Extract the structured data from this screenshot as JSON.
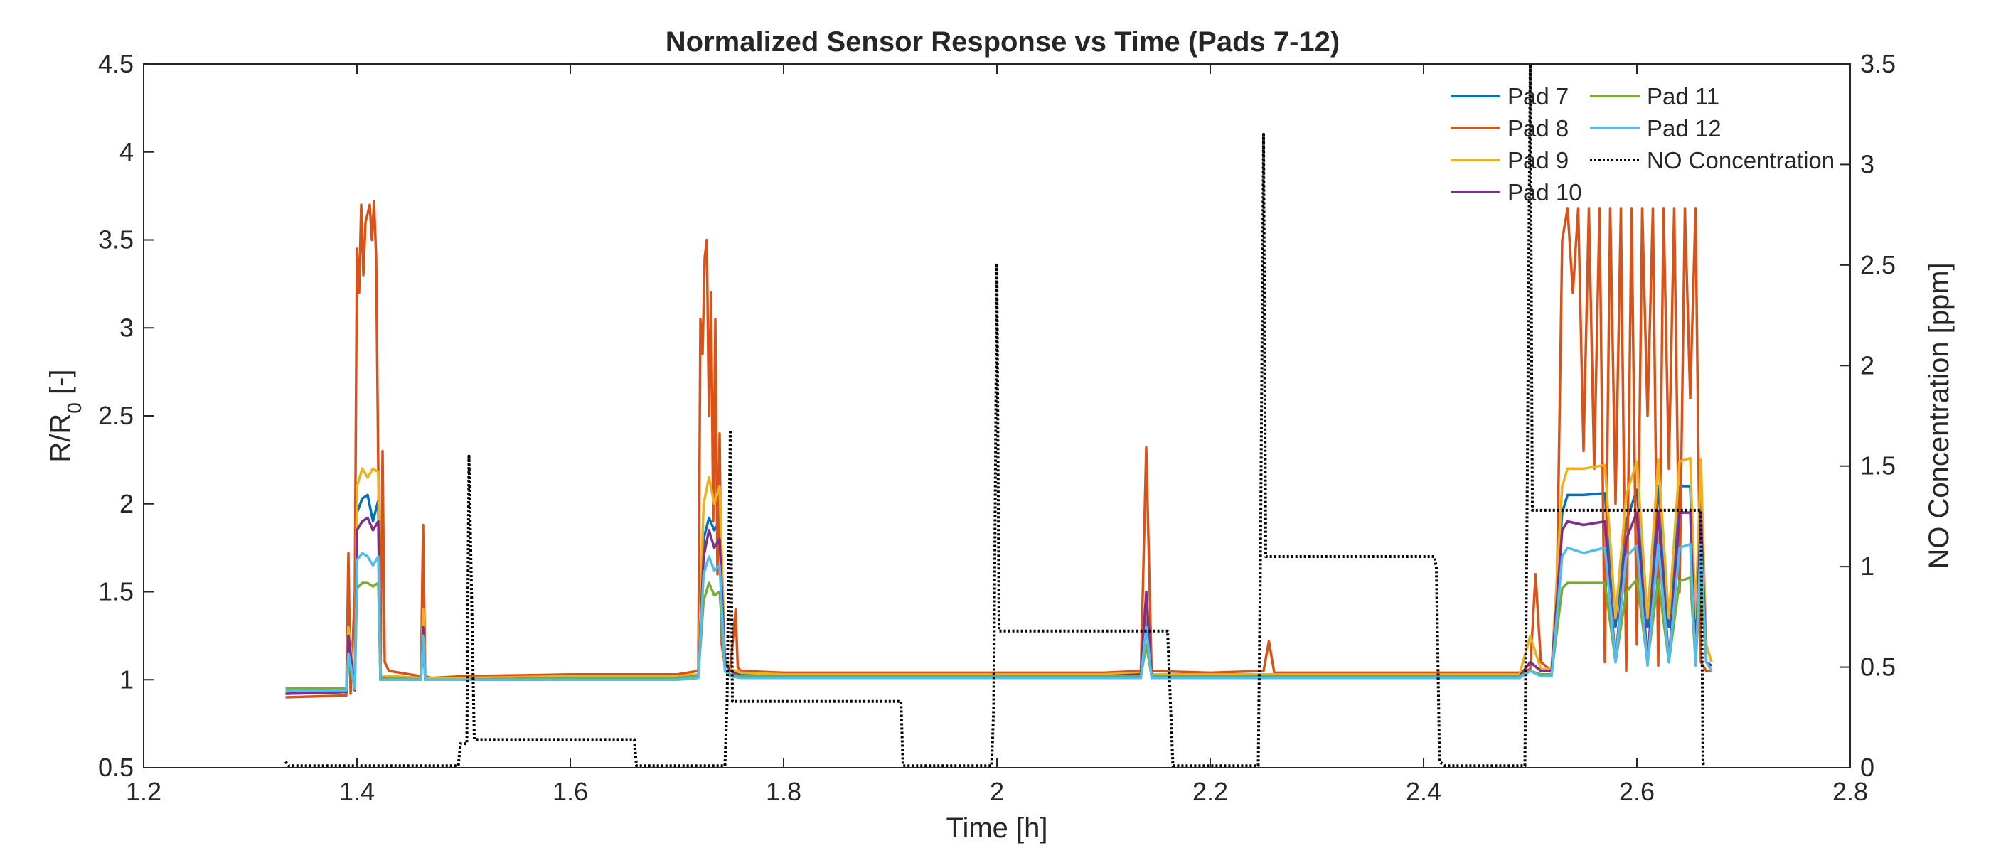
{
  "chart_data": {
    "type": "line",
    "title": "Normalized Sensor Response vs Time (Pads 7-12)",
    "xlabel": "Time [h]",
    "ylabel_left_main": "R/R",
    "ylabel_left_sub": "0",
    "ylabel_left_tail": " [-]",
    "ylabel_right": "NO Concentration [ppm]",
    "xlim": [
      1.2,
      2.8
    ],
    "ylim_left": [
      0.5,
      4.5
    ],
    "ylim_right": [
      0,
      3.5
    ],
    "x_ticks": [
      "1.2",
      "1.4",
      "1.6",
      "1.8",
      "2",
      "2.2",
      "2.4",
      "2.6",
      "2.8"
    ],
    "y_left_ticks": [
      "0.5",
      "1",
      "1.5",
      "2",
      "2.5",
      "3",
      "3.5",
      "4",
      "4.5"
    ],
    "y_right_ticks": [
      "0",
      "0.5",
      "1",
      "1.5",
      "2",
      "2.5",
      "3",
      "3.5"
    ],
    "grid": false,
    "legend_position": "top-right",
    "series": [
      {
        "name": "Pad 7",
        "color": "#0072BD",
        "axis": "left",
        "x": [
          1.333,
          1.39,
          1.392,
          1.398,
          1.4,
          1.405,
          1.41,
          1.415,
          1.42,
          1.422,
          1.43,
          1.46,
          1.462,
          1.464,
          1.47,
          1.5,
          1.6,
          1.7,
          1.72,
          1.725,
          1.73,
          1.735,
          1.74,
          1.745,
          1.75,
          1.76,
          1.8,
          1.9,
          2.0,
          2.1,
          2.135,
          2.14,
          2.145,
          2.2,
          2.3,
          2.4,
          2.49,
          2.5,
          2.51,
          2.52,
          2.53,
          2.535,
          2.55,
          2.57,
          2.58,
          2.59,
          2.6,
          2.61,
          2.62,
          2.63,
          2.64,
          2.65,
          2.655,
          2.66,
          2.665,
          2.67
        ],
        "y": [
          0.92,
          0.93,
          1.2,
          0.95,
          1.95,
          2.03,
          2.05,
          1.9,
          2.02,
          1.0,
          1.02,
          1.01,
          1.3,
          1.0,
          1.0,
          1.0,
          1.01,
          1.01,
          1.02,
          1.8,
          1.92,
          1.85,
          1.9,
          1.1,
          1.05,
          1.03,
          1.02,
          1.02,
          1.02,
          1.02,
          1.03,
          1.35,
          1.02,
          1.02,
          1.02,
          1.02,
          1.02,
          1.1,
          1.05,
          1.05,
          1.95,
          2.05,
          2.05,
          2.06,
          1.3,
          1.9,
          2.08,
          1.3,
          2.1,
          1.3,
          2.1,
          2.1,
          1.3,
          2.12,
          1.2,
          1.1
        ]
      },
      {
        "name": "Pad 8",
        "color": "#D95319",
        "axis": "left",
        "x": [
          1.333,
          1.39,
          1.392,
          1.394,
          1.398,
          1.4,
          1.402,
          1.404,
          1.406,
          1.408,
          1.41,
          1.412,
          1.414,
          1.416,
          1.418,
          1.42,
          1.422,
          1.424,
          1.426,
          1.43,
          1.46,
          1.462,
          1.464,
          1.47,
          1.5,
          1.6,
          1.7,
          1.72,
          1.722,
          1.724,
          1.726,
          1.728,
          1.73,
          1.732,
          1.734,
          1.736,
          1.738,
          1.74,
          1.742,
          1.745,
          1.75,
          1.755,
          1.757,
          1.76,
          1.8,
          1.9,
          2.0,
          2.1,
          2.135,
          2.14,
          2.145,
          2.2,
          2.25,
          2.255,
          2.26,
          2.3,
          2.4,
          2.49,
          2.5,
          2.505,
          2.51,
          2.52,
          2.525,
          2.53,
          2.535,
          2.54,
          2.545,
          2.55,
          2.555,
          2.56,
          2.565,
          2.57,
          2.575,
          2.58,
          2.585,
          2.59,
          2.595,
          2.6,
          2.605,
          2.61,
          2.615,
          2.62,
          2.625,
          2.63,
          2.635,
          2.64,
          2.645,
          2.65,
          2.655,
          2.66,
          2.665,
          2.67
        ],
        "y": [
          0.9,
          0.91,
          1.72,
          0.92,
          1.5,
          3.45,
          3.2,
          3.7,
          3.3,
          3.6,
          3.65,
          3.7,
          3.5,
          3.72,
          3.4,
          2.2,
          1.05,
          2.3,
          1.1,
          1.05,
          1.02,
          1.88,
          1.02,
          1.01,
          1.02,
          1.03,
          1.03,
          1.05,
          3.05,
          2.85,
          3.4,
          3.5,
          2.5,
          3.2,
          1.9,
          3.05,
          1.6,
          2.4,
          1.2,
          1.08,
          1.06,
          1.4,
          1.07,
          1.05,
          1.04,
          1.04,
          1.04,
          1.04,
          1.05,
          2.32,
          1.05,
          1.04,
          1.05,
          1.22,
          1.04,
          1.04,
          1.04,
          1.04,
          1.06,
          1.6,
          1.1,
          1.05,
          1.5,
          3.5,
          3.68,
          3.2,
          3.68,
          2.3,
          3.68,
          2.2,
          3.68,
          1.1,
          3.68,
          2.0,
          3.68,
          1.05,
          3.68,
          1.2,
          3.68,
          2.5,
          3.68,
          1.08,
          3.68,
          2.2,
          3.68,
          1.5,
          3.68,
          2.6,
          3.68,
          1.1,
          1.05,
          1.05
        ]
      },
      {
        "name": "Pad 9",
        "color": "#EDB120",
        "axis": "left",
        "x": [
          1.333,
          1.39,
          1.392,
          1.398,
          1.4,
          1.405,
          1.41,
          1.415,
          1.42,
          1.422,
          1.43,
          1.46,
          1.462,
          1.464,
          1.47,
          1.5,
          1.6,
          1.7,
          1.72,
          1.725,
          1.73,
          1.735,
          1.74,
          1.745,
          1.75,
          1.76,
          1.8,
          1.9,
          2.0,
          2.1,
          2.135,
          2.14,
          2.145,
          2.2,
          2.3,
          2.4,
          2.49,
          2.5,
          2.51,
          2.52,
          2.53,
          2.535,
          2.55,
          2.57,
          2.58,
          2.59,
          2.6,
          2.61,
          2.62,
          2.63,
          2.64,
          2.65,
          2.655,
          2.66,
          2.665,
          2.67
        ],
        "y": [
          0.93,
          0.94,
          1.3,
          0.96,
          2.1,
          2.2,
          2.15,
          2.2,
          2.18,
          1.02,
          1.02,
          1.01,
          1.4,
          1.01,
          1.01,
          1.01,
          1.02,
          1.02,
          1.03,
          2.0,
          2.15,
          2.0,
          2.1,
          1.12,
          1.06,
          1.04,
          1.03,
          1.03,
          1.03,
          1.03,
          1.04,
          1.45,
          1.03,
          1.03,
          1.03,
          1.03,
          1.03,
          1.25,
          1.06,
          1.06,
          2.1,
          2.2,
          2.2,
          2.22,
          1.35,
          2.05,
          2.24,
          1.35,
          2.25,
          1.35,
          2.24,
          2.26,
          1.35,
          2.25,
          1.2,
          1.1
        ]
      },
      {
        "name": "Pad 10",
        "color": "#7E2F8E",
        "axis": "left",
        "x": [
          1.333,
          1.39,
          1.392,
          1.398,
          1.4,
          1.405,
          1.41,
          1.415,
          1.42,
          1.422,
          1.43,
          1.46,
          1.462,
          1.464,
          1.47,
          1.5,
          1.6,
          1.7,
          1.72,
          1.725,
          1.73,
          1.735,
          1.74,
          1.745,
          1.75,
          1.76,
          1.8,
          1.9,
          2.0,
          2.1,
          2.135,
          2.14,
          2.145,
          2.2,
          2.3,
          2.4,
          2.49,
          2.5,
          2.51,
          2.52,
          2.53,
          2.535,
          2.55,
          2.57,
          2.58,
          2.59,
          2.6,
          2.61,
          2.62,
          2.63,
          2.64,
          2.65,
          2.655,
          2.66,
          2.665,
          2.67
        ],
        "y": [
          0.92,
          0.93,
          1.25,
          0.94,
          1.85,
          1.9,
          1.92,
          1.85,
          1.9,
          1.0,
          1.01,
          1.0,
          1.3,
          1.0,
          1.0,
          1.0,
          1.01,
          1.01,
          1.02,
          1.7,
          1.85,
          1.75,
          1.8,
          1.1,
          1.05,
          1.02,
          1.02,
          1.02,
          1.02,
          1.02,
          1.03,
          1.5,
          1.02,
          1.02,
          1.02,
          1.02,
          1.02,
          1.1,
          1.05,
          1.05,
          1.85,
          1.9,
          1.88,
          1.9,
          1.1,
          1.8,
          1.95,
          1.1,
          1.96,
          1.1,
          1.95,
          1.95,
          1.1,
          1.95,
          1.1,
          1.08
        ]
      },
      {
        "name": "Pad 11",
        "color": "#77AC30",
        "axis": "left",
        "x": [
          1.333,
          1.39,
          1.392,
          1.398,
          1.4,
          1.405,
          1.41,
          1.415,
          1.42,
          1.422,
          1.43,
          1.46,
          1.462,
          1.464,
          1.47,
          1.5,
          1.6,
          1.7,
          1.72,
          1.725,
          1.73,
          1.735,
          1.74,
          1.745,
          1.75,
          1.76,
          1.8,
          1.9,
          2.0,
          2.1,
          2.135,
          2.14,
          2.145,
          2.2,
          2.3,
          2.4,
          2.49,
          2.5,
          2.51,
          2.52,
          2.53,
          2.535,
          2.55,
          2.57,
          2.58,
          2.59,
          2.6,
          2.61,
          2.62,
          2.63,
          2.64,
          2.65,
          2.655,
          2.66,
          2.665,
          2.67
        ],
        "y": [
          0.95,
          0.95,
          1.1,
          0.96,
          1.52,
          1.55,
          1.55,
          1.53,
          1.55,
          1.0,
          1.01,
          1.0,
          1.2,
          1.0,
          1.0,
          1.0,
          1.01,
          1.01,
          1.02,
          1.45,
          1.55,
          1.48,
          1.5,
          1.05,
          1.03,
          1.02,
          1.02,
          1.02,
          1.02,
          1.02,
          1.02,
          1.2,
          1.02,
          1.02,
          1.02,
          1.02,
          1.02,
          1.05,
          1.03,
          1.03,
          1.52,
          1.55,
          1.55,
          1.55,
          1.1,
          1.5,
          1.57,
          1.1,
          1.57,
          1.1,
          1.56,
          1.58,
          1.1,
          1.58,
          1.1,
          1.05
        ]
      },
      {
        "name": "Pad 12",
        "color": "#4DBEEE",
        "axis": "left",
        "x": [
          1.333,
          1.39,
          1.392,
          1.398,
          1.4,
          1.405,
          1.41,
          1.415,
          1.42,
          1.422,
          1.43,
          1.46,
          1.462,
          1.464,
          1.47,
          1.5,
          1.6,
          1.7,
          1.72,
          1.725,
          1.73,
          1.735,
          1.74,
          1.745,
          1.75,
          1.76,
          1.8,
          1.9,
          2.0,
          2.1,
          2.135,
          2.14,
          2.145,
          2.2,
          2.3,
          2.4,
          2.49,
          2.5,
          2.51,
          2.52,
          2.53,
          2.535,
          2.55,
          2.57,
          2.58,
          2.59,
          2.6,
          2.61,
          2.62,
          2.63,
          2.64,
          2.65,
          2.655,
          2.66,
          2.665,
          2.67
        ],
        "y": [
          0.94,
          0.94,
          1.15,
          0.95,
          1.68,
          1.72,
          1.7,
          1.65,
          1.7,
          1.0,
          1.0,
          1.0,
          1.25,
          1.0,
          1.0,
          1.0,
          1.0,
          1.0,
          1.01,
          1.6,
          1.7,
          1.62,
          1.65,
          1.05,
          1.02,
          1.01,
          1.01,
          1.01,
          1.01,
          1.01,
          1.01,
          1.3,
          1.01,
          1.01,
          1.01,
          1.01,
          1.01,
          1.05,
          1.02,
          1.02,
          1.7,
          1.75,
          1.72,
          1.75,
          1.1,
          1.7,
          1.76,
          1.08,
          1.77,
          1.1,
          1.75,
          1.77,
          1.08,
          1.78,
          1.1,
          1.05
        ]
      },
      {
        "name": "NO Concentration",
        "color": "#000000",
        "axis": "right",
        "dash": true,
        "x": [
          1.333,
          1.336,
          1.495,
          1.497,
          1.503,
          1.505,
          1.51,
          1.66,
          1.662,
          1.745,
          1.747,
          1.75,
          1.752,
          1.91,
          1.912,
          1.995,
          1.997,
          2.0,
          2.002,
          2.16,
          2.165,
          2.245,
          2.247,
          2.25,
          2.252,
          2.41,
          2.412,
          2.415,
          2.42,
          2.495,
          2.497,
          2.5,
          2.502,
          2.66,
          2.662,
          2.665
        ],
        "y": [
          0.03,
          0.01,
          0.01,
          0.12,
          0.12,
          1.55,
          0.14,
          0.14,
          0.01,
          0.01,
          0.32,
          1.68,
          0.33,
          0.33,
          0.01,
          0.01,
          0.3,
          2.5,
          0.68,
          0.68,
          0.01,
          0.01,
          1.0,
          3.15,
          1.05,
          1.05,
          1.0,
          0.03,
          0.01,
          0.01,
          1.25,
          3.5,
          1.28,
          1.28,
          0.02,
          0.02
        ]
      }
    ]
  }
}
